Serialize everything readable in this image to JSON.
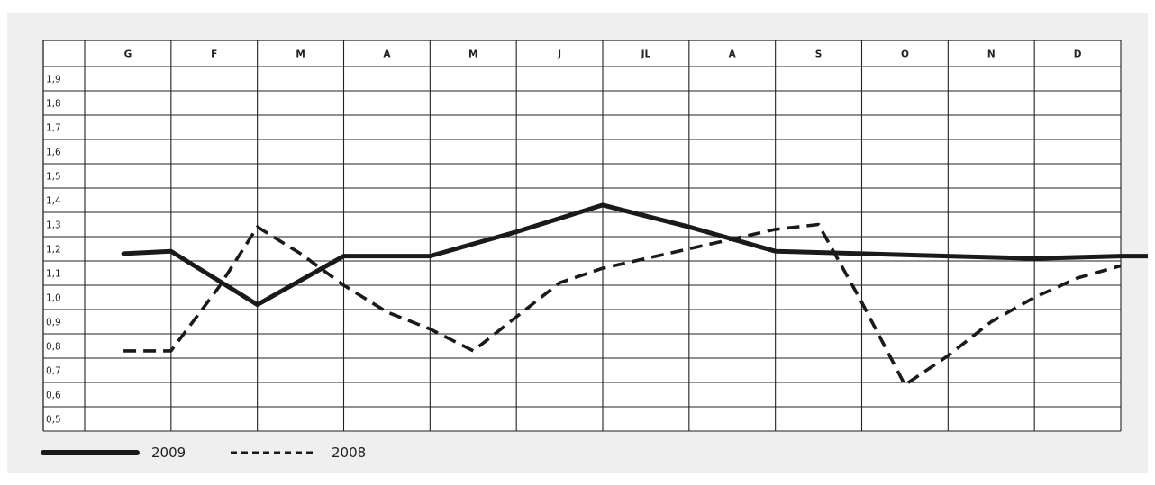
{
  "chart_data": {
    "type": "line",
    "categories": [
      "G",
      "F",
      "M",
      "A",
      "M",
      "J",
      "JL",
      "A",
      "S",
      "O",
      "N",
      "D"
    ],
    "y_ticks": [
      "1,9",
      "1,8",
      "1,7",
      "1,6",
      "1,5",
      "1,4",
      "1,3",
      "1,2",
      "1,1",
      "1,0",
      "0,9",
      "0,8",
      "0,7",
      "0,6",
      "0,5"
    ],
    "ylim": [
      0.5,
      1.9
    ],
    "highlight_band": {
      "from": 1.45,
      "to": 1.55,
      "color": "#a7a6a9"
    },
    "grid": true,
    "legend_position": "bottom-left",
    "series": [
      {
        "name": "2009",
        "style": "solid",
        "color": "#1a1a1a",
        "x": [
          0.45,
          1.0,
          2.0,
          3.0,
          4.0,
          5.0,
          6.0,
          7.0,
          8.0,
          9.0,
          10.0,
          11.0,
          12.0,
          12.45
        ],
        "y": [
          1.18,
          1.19,
          0.97,
          1.17,
          1.17,
          1.27,
          1.38,
          1.29,
          1.19,
          1.18,
          1.17,
          1.16,
          1.17,
          1.17
        ]
      },
      {
        "name": "2008",
        "style": "dashed",
        "color": "#1a1a1a",
        "x": [
          0.45,
          1.0,
          1.55,
          2.0,
          2.5,
          3.0,
          3.5,
          4.0,
          4.5,
          5.0,
          5.5,
          6.0,
          6.5,
          7.0,
          7.5,
          8.0,
          8.5,
          9.0,
          9.5,
          10.0,
          10.5,
          11.0,
          11.5,
          12.0
        ],
        "y": [
          0.78,
          0.78,
          1.04,
          1.29,
          1.18,
          1.05,
          0.94,
          0.87,
          0.78,
          0.92,
          1.06,
          1.12,
          1.16,
          1.2,
          1.24,
          1.28,
          1.3,
          0.98,
          0.64,
          0.76,
          0.9,
          1.0,
          1.08,
          1.13
        ]
      }
    ],
    "legend": [
      {
        "label": "2009",
        "style": "solid"
      },
      {
        "label": "2008",
        "style": "dashed"
      }
    ]
  }
}
